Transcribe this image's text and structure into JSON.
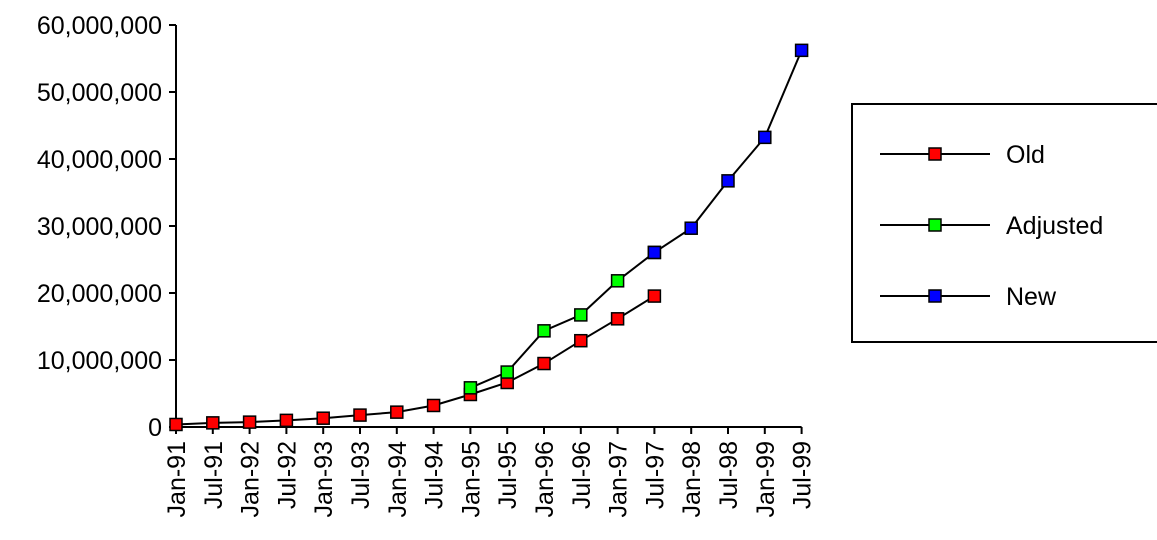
{
  "chart_data": {
    "type": "line",
    "title": "",
    "xlabel": "",
    "ylabel": "",
    "categories": [
      "Jan-91",
      "Jul-91",
      "Jan-92",
      "Jul-92",
      "Jan-93",
      "Jul-93",
      "Jan-94",
      "Jul-94",
      "Jan-95",
      "Jul-95",
      "Jan-96",
      "Jul-96",
      "Jan-97",
      "Jul-97",
      "Jan-98",
      "Jul-98",
      "Jan-99",
      "Jul-99"
    ],
    "y_ticks": [
      "0",
      "10,000,000",
      "20,000,000",
      "30,000,000",
      "40,000,000",
      "50,000,000",
      "60,000,000"
    ],
    "ylim": [
      0,
      60000000
    ],
    "grid": false,
    "legend_position": "right",
    "series": [
      {
        "name": "Old",
        "color": "#ff0000",
        "values": [
          376000,
          617000,
          727000,
          992000,
          1313000,
          1776000,
          2217000,
          3212000,
          4852000,
          6642000,
          9472000,
          12881000,
          16146000,
          19540000,
          null,
          null,
          null,
          null
        ]
      },
      {
        "name": "Adjusted",
        "color": "#00ff00",
        "values": [
          null,
          null,
          null,
          null,
          null,
          null,
          null,
          null,
          5846000,
          8200000,
          14352000,
          16729000,
          21819000,
          26053000,
          null,
          null,
          null,
          null
        ]
      },
      {
        "name": "New",
        "color": "#0000ff",
        "values": [
          null,
          null,
          null,
          null,
          null,
          null,
          null,
          null,
          null,
          null,
          null,
          null,
          null,
          26053000,
          29670000,
          36739000,
          43230000,
          56218000
        ]
      }
    ]
  }
}
